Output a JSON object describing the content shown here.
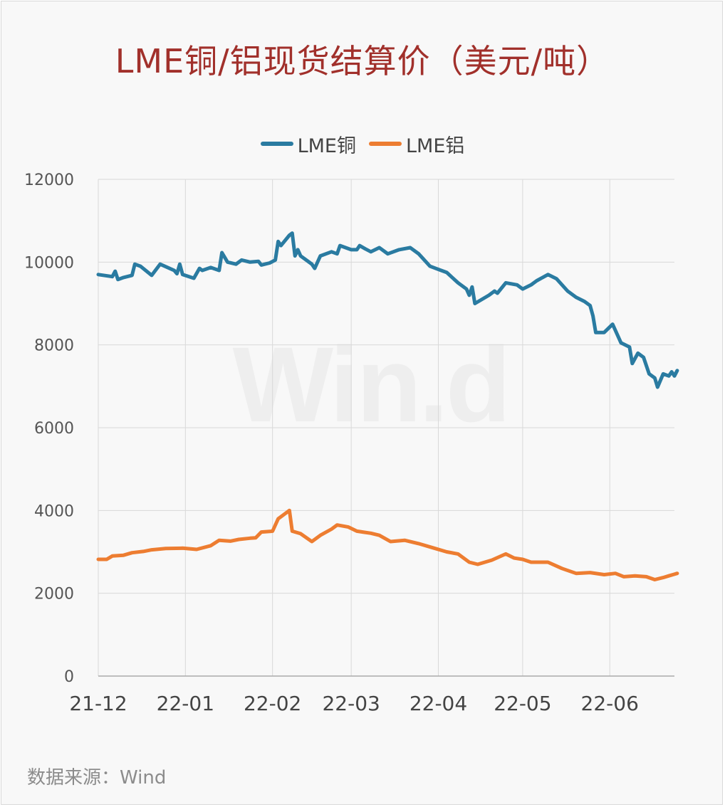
{
  "colors": {
    "title": "#a1302b",
    "copper": "#2a7ba1",
    "aluminum": "#ed7d31",
    "grid": "#d9d9d9",
    "axis": "#aaaaaa"
  },
  "watermark": "Win.d",
  "source": "数据来源：Wind",
  "chart_data": {
    "type": "line",
    "title": "LME铜/铝现货结算价（美元/吨）",
    "xlabel": "",
    "ylabel": "",
    "ylim": [
      0,
      12000
    ],
    "y_ticks": [
      "0",
      "2000",
      "4000",
      "6000",
      "8000",
      "10000",
      "12000"
    ],
    "x_ticks": [
      "21-12",
      "22-01",
      "22-02",
      "22-03",
      "22-04",
      "22-05",
      "22-06"
    ],
    "x_tick_dates": [
      "2021-12-01",
      "2022-01-01",
      "2022-02-01",
      "2022-03-01",
      "2022-04-01",
      "2022-05-01",
      "2022-06-01"
    ],
    "xlim": [
      "2021-12-01",
      "2022-06-24"
    ],
    "grid": true,
    "legend_position": "top",
    "series": [
      {
        "name": "LME铜",
        "color": "#2a7ba1",
        "points": [
          [
            "2021-12-01",
            9700
          ],
          [
            "2021-12-06",
            9650
          ],
          [
            "2021-12-07",
            9780
          ],
          [
            "2021-12-08",
            9580
          ],
          [
            "2021-12-10",
            9630
          ],
          [
            "2021-12-13",
            9680
          ],
          [
            "2021-12-14",
            9950
          ],
          [
            "2021-12-16",
            9900
          ],
          [
            "2021-12-20",
            9680
          ],
          [
            "2021-12-23",
            9950
          ],
          [
            "2021-12-28",
            9800
          ],
          [
            "2021-12-29",
            9720
          ],
          [
            "2021-12-30",
            9950
          ],
          [
            "2021-12-31",
            9700
          ],
          [
            "2022-01-04",
            9610
          ],
          [
            "2022-01-06",
            9850
          ],
          [
            "2022-01-07",
            9800
          ],
          [
            "2022-01-10",
            9870
          ],
          [
            "2022-01-13",
            9800
          ],
          [
            "2022-01-14",
            10230
          ],
          [
            "2022-01-16",
            10000
          ],
          [
            "2022-01-19",
            9950
          ],
          [
            "2022-01-21",
            10050
          ],
          [
            "2022-01-24",
            10000
          ],
          [
            "2022-01-27",
            10020
          ],
          [
            "2022-01-28",
            9930
          ],
          [
            "2022-01-31",
            9980
          ],
          [
            "2022-02-02",
            10050
          ],
          [
            "2022-02-03",
            10500
          ],
          [
            "2022-02-04",
            10400
          ],
          [
            "2022-02-07",
            10650
          ],
          [
            "2022-02-08",
            10700
          ],
          [
            "2022-02-09",
            10150
          ],
          [
            "2022-02-10",
            10300
          ],
          [
            "2022-02-11",
            10150
          ],
          [
            "2022-02-15",
            9950
          ],
          [
            "2022-02-16",
            9850
          ],
          [
            "2022-02-18",
            10150
          ],
          [
            "2022-02-22",
            10250
          ],
          [
            "2022-02-24",
            10200
          ],
          [
            "2022-02-25",
            10400
          ],
          [
            "2022-03-01",
            10300
          ],
          [
            "2022-03-03",
            10300
          ],
          [
            "2022-03-04",
            10400
          ],
          [
            "2022-03-06",
            10320
          ],
          [
            "2022-03-08",
            10250
          ],
          [
            "2022-03-11",
            10350
          ],
          [
            "2022-03-14",
            10200
          ],
          [
            "2022-03-18",
            10300
          ],
          [
            "2022-03-22",
            10350
          ],
          [
            "2022-03-25",
            10200
          ],
          [
            "2022-03-29",
            9900
          ],
          [
            "2022-03-31",
            9850
          ],
          [
            "2022-04-04",
            9750
          ],
          [
            "2022-04-08",
            9500
          ],
          [
            "2022-04-11",
            9350
          ],
          [
            "2022-04-12",
            9200
          ],
          [
            "2022-04-13",
            9400
          ],
          [
            "2022-04-14",
            9000
          ],
          [
            "2022-04-19",
            9200
          ],
          [
            "2022-04-21",
            9300
          ],
          [
            "2022-04-22",
            9250
          ],
          [
            "2022-04-25",
            9500
          ],
          [
            "2022-04-29",
            9450
          ],
          [
            "2022-05-01",
            9350
          ],
          [
            "2022-05-04",
            9450
          ],
          [
            "2022-05-06",
            9550
          ],
          [
            "2022-05-10",
            9700
          ],
          [
            "2022-05-13",
            9600
          ],
          [
            "2022-05-17",
            9300
          ],
          [
            "2022-05-20",
            9150
          ],
          [
            "2022-05-23",
            9050
          ],
          [
            "2022-05-25",
            8950
          ],
          [
            "2022-05-26",
            8700
          ],
          [
            "2022-05-27",
            8300
          ],
          [
            "2022-05-30",
            8300
          ],
          [
            "2022-06-02",
            8500
          ],
          [
            "2022-06-05",
            8050
          ],
          [
            "2022-06-08",
            7950
          ],
          [
            "2022-06-09",
            7550
          ],
          [
            "2022-06-11",
            7800
          ],
          [
            "2022-06-13",
            7700
          ],
          [
            "2022-06-15",
            7300
          ],
          [
            "2022-06-17",
            7200
          ],
          [
            "2022-06-18",
            6980
          ],
          [
            "2022-06-20",
            7300
          ],
          [
            "2022-06-22",
            7250
          ],
          [
            "2022-06-23",
            7350
          ],
          [
            "2022-06-24",
            7250
          ],
          [
            "2022-06-25",
            7380
          ]
        ]
      },
      {
        "name": "LME铝",
        "color": "#ed7d31",
        "points": [
          [
            "2021-12-01",
            2820
          ],
          [
            "2021-12-04",
            2820
          ],
          [
            "2021-12-06",
            2900
          ],
          [
            "2021-12-10",
            2920
          ],
          [
            "2021-12-13",
            2980
          ],
          [
            "2021-12-17",
            3010
          ],
          [
            "2021-12-20",
            3050
          ],
          [
            "2021-12-25",
            3080
          ],
          [
            "2021-12-31",
            3090
          ],
          [
            "2022-01-05",
            3060
          ],
          [
            "2022-01-10",
            3150
          ],
          [
            "2022-01-13",
            3280
          ],
          [
            "2022-01-17",
            3260
          ],
          [
            "2022-01-20",
            3300
          ],
          [
            "2022-01-24",
            3330
          ],
          [
            "2022-01-26",
            3340
          ],
          [
            "2022-01-28",
            3480
          ],
          [
            "2022-02-01",
            3500
          ],
          [
            "2022-02-03",
            3800
          ],
          [
            "2022-02-07",
            4000
          ],
          [
            "2022-02-08",
            3500
          ],
          [
            "2022-02-11",
            3440
          ],
          [
            "2022-02-15",
            3250
          ],
          [
            "2022-02-18",
            3400
          ],
          [
            "2022-02-22",
            3550
          ],
          [
            "2022-02-24",
            3650
          ],
          [
            "2022-02-28",
            3600
          ],
          [
            "2022-03-03",
            3500
          ],
          [
            "2022-03-08",
            3450
          ],
          [
            "2022-03-11",
            3400
          ],
          [
            "2022-03-15",
            3250
          ],
          [
            "2022-03-20",
            3280
          ],
          [
            "2022-03-25",
            3200
          ],
          [
            "2022-03-30",
            3100
          ],
          [
            "2022-04-04",
            3000
          ],
          [
            "2022-04-08",
            2950
          ],
          [
            "2022-04-12",
            2750
          ],
          [
            "2022-04-15",
            2700
          ],
          [
            "2022-04-20",
            2800
          ],
          [
            "2022-04-25",
            2950
          ],
          [
            "2022-04-28",
            2850
          ],
          [
            "2022-05-01",
            2820
          ],
          [
            "2022-05-04",
            2750
          ],
          [
            "2022-05-10",
            2750
          ],
          [
            "2022-05-15",
            2600
          ],
          [
            "2022-05-20",
            2480
          ],
          [
            "2022-05-25",
            2500
          ],
          [
            "2022-05-30",
            2450
          ],
          [
            "2022-06-03",
            2480
          ],
          [
            "2022-06-06",
            2400
          ],
          [
            "2022-06-10",
            2420
          ],
          [
            "2022-06-14",
            2400
          ],
          [
            "2022-06-17",
            2330
          ],
          [
            "2022-06-20",
            2380
          ],
          [
            "2022-06-22",
            2420
          ],
          [
            "2022-06-24",
            2460
          ],
          [
            "2022-06-25",
            2480
          ]
        ]
      }
    ]
  }
}
